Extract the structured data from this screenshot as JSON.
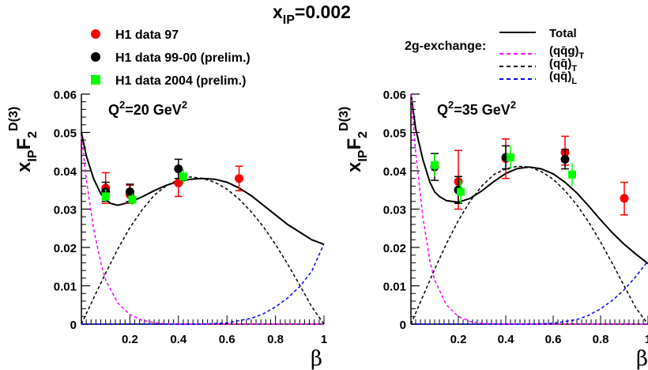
{
  "header": {
    "title_main": "x",
    "title_sub": "IP",
    "title_value": "=0.002",
    "legend_title": "2g-exchange:"
  },
  "legend": {
    "data": [
      {
        "label": "H1 data 97",
        "color": "#ff0000",
        "marker": "circle"
      },
      {
        "label": "H1 data 99-00 (prelim.)",
        "color": "#000000",
        "marker": "circle"
      },
      {
        "label": "H1 data 2004 (prelim.)",
        "color": "#00ff00",
        "marker": "square"
      }
    ],
    "curves": [
      {
        "main": "Total",
        "sub": "",
        "color": "#000000",
        "style": "solid"
      },
      {
        "main": "(qq̄g)",
        "sub": "T",
        "color": "#ff00ff",
        "style": "dashed"
      },
      {
        "main": "(qq̄)",
        "sub": "T",
        "color": "#000000",
        "style": "dashed"
      },
      {
        "main": "(qq̄)",
        "sub": "L",
        "color": "#0000ff",
        "style": "dashed"
      }
    ]
  },
  "chart_data": [
    {
      "type": "scatter",
      "q2_main": "Q",
      "q2_sup": "2",
      "q2_value": "=20 GeV",
      "q2_unit_sup": "2",
      "xlabel": "β",
      "ylabel": {
        "main": "x",
        "sub": "IP",
        "F": "F",
        "F_sub": "2",
        "F_sup": "D(3)"
      },
      "xlim": [
        0,
        1
      ],
      "ylim": [
        0,
        0.06
      ],
      "x_ticks": [
        "0.2",
        "0.4",
        "0.6",
        "0.8",
        "1"
      ],
      "y_ticks": [
        "0",
        "0.01",
        "0.02",
        "0.03",
        "0.04",
        "0.05",
        "0.06"
      ],
      "series": [
        {
          "name": "H1 data 97",
          "color": "#ff0000",
          "marker": "circle",
          "points": [
            {
              "x": 0.1,
              "y": 0.0355,
              "lo": 0.0315,
              "hi": 0.0395
            },
            {
              "x": 0.2,
              "y": 0.0338,
              "lo": 0.0315,
              "hi": 0.0362
            },
            {
              "x": 0.4,
              "y": 0.0368,
              "lo": 0.0333,
              "hi": 0.0403
            },
            {
              "x": 0.65,
              "y": 0.038,
              "lo": 0.0348,
              "hi": 0.0412
            }
          ]
        },
        {
          "name": "H1 data 99-00 (prelim.)",
          "color": "#000000",
          "marker": "circle",
          "points": [
            {
              "x": 0.1,
              "y": 0.0345,
              "lo": 0.032,
              "hi": 0.037
            },
            {
              "x": 0.2,
              "y": 0.0345,
              "lo": 0.032,
              "hi": 0.0365
            },
            {
              "x": 0.4,
              "y": 0.0405,
              "lo": 0.038,
              "hi": 0.043
            }
          ]
        },
        {
          "name": "H1 data 2004 (prelim.)",
          "color": "#00ff00",
          "marker": "square",
          "points": [
            {
              "x": 0.1,
              "y": 0.0333,
              "lo": 0.0315,
              "hi": 0.0352
            },
            {
              "x": 0.21,
              "y": 0.0325,
              "lo": 0.031,
              "hi": 0.034
            },
            {
              "x": 0.42,
              "y": 0.0385,
              "lo": 0.0365,
              "hi": 0.0405
            }
          ]
        }
      ],
      "curves": [
        {
          "name": "Total",
          "color": "#000000",
          "style": "solid",
          "x": [
            0,
            0.02,
            0.05,
            0.08,
            0.1,
            0.12,
            0.15,
            0.2,
            0.25,
            0.3,
            0.35,
            0.4,
            0.45,
            0.5,
            0.55,
            0.6,
            0.65,
            0.7,
            0.75,
            0.8,
            0.85,
            0.9,
            0.95,
            1.0
          ],
          "y": [
            0.05,
            0.044,
            0.038,
            0.034,
            0.0325,
            0.0315,
            0.031,
            0.0318,
            0.0332,
            0.0348,
            0.0362,
            0.0372,
            0.0378,
            0.038,
            0.0378,
            0.037,
            0.0355,
            0.0335,
            0.031,
            0.0285,
            0.026,
            0.024,
            0.022,
            0.0208
          ]
        },
        {
          "name": "(qq̄g)T",
          "color": "#ff00ff",
          "style": "dashed",
          "x": [
            0,
            0.02,
            0.05,
            0.08,
            0.1,
            0.15,
            0.2,
            0.25,
            0.3,
            0.35,
            0.4,
            0.5,
            0.6,
            1.0
          ],
          "y": [
            0.049,
            0.038,
            0.025,
            0.016,
            0.0115,
            0.0055,
            0.0025,
            0.001,
            0.0004,
            0.0001,
            0.0,
            0.0,
            0.0,
            0.0
          ]
        },
        {
          "name": "(qq̄)T",
          "color": "#000000",
          "style": "dashed",
          "x": [
            0,
            0.05,
            0.1,
            0.15,
            0.2,
            0.25,
            0.3,
            0.35,
            0.4,
            0.45,
            0.5,
            0.55,
            0.6,
            0.65,
            0.7,
            0.75,
            0.8,
            0.85,
            0.9,
            0.95,
            1.0
          ],
          "y": [
            0.0,
            0.0067,
            0.0133,
            0.0196,
            0.0252,
            0.0298,
            0.0336,
            0.0361,
            0.0377,
            0.0384,
            0.038,
            0.037,
            0.0352,
            0.0326,
            0.0293,
            0.0254,
            0.0208,
            0.0157,
            0.0102,
            0.0045,
            0.0
          ]
        },
        {
          "name": "(qq̄)L",
          "color": "#0000ff",
          "style": "dashed",
          "x": [
            0,
            0.5,
            0.6,
            0.7,
            0.75,
            0.8,
            0.85,
            0.9,
            0.95,
            1.0
          ],
          "y": [
            0.0,
            0.0,
            0.0003,
            0.0015,
            0.0027,
            0.0045,
            0.0068,
            0.0098,
            0.0138,
            0.021
          ]
        }
      ]
    },
    {
      "type": "scatter",
      "q2_main": "Q",
      "q2_sup": "2",
      "q2_value": "=35 GeV",
      "q2_unit_sup": "2",
      "xlabel": "β",
      "ylabel": {
        "main": "x",
        "sub": "IP",
        "F": "F",
        "F_sub": "2",
        "F_sup": "D(3)"
      },
      "xlim": [
        0,
        1
      ],
      "ylim": [
        0,
        0.06
      ],
      "x_ticks": [
        "0.2",
        "0.4",
        "0.6",
        "0.8",
        "1"
      ],
      "y_ticks": [
        "0",
        "0.01",
        "0.02",
        "0.03",
        "0.04",
        "0.05",
        "0.06"
      ],
      "series": [
        {
          "name": "H1 data 97",
          "color": "#ff0000",
          "marker": "circle",
          "points": [
            {
              "x": 0.2,
              "y": 0.0372,
              "lo": 0.03,
              "hi": 0.0453
            },
            {
              "x": 0.4,
              "y": 0.0432,
              "lo": 0.038,
              "hi": 0.0483
            },
            {
              "x": 0.65,
              "y": 0.0448,
              "lo": 0.0415,
              "hi": 0.049
            },
            {
              "x": 0.9,
              "y": 0.0328,
              "lo": 0.0285,
              "hi": 0.037
            }
          ]
        },
        {
          "name": "H1 data 99-00 (prelim.)",
          "color": "#000000",
          "marker": "circle",
          "points": [
            {
              "x": 0.1,
              "y": 0.041,
              "lo": 0.0375,
              "hi": 0.0445
            },
            {
              "x": 0.2,
              "y": 0.035,
              "lo": 0.0315,
              "hi": 0.0385
            },
            {
              "x": 0.4,
              "y": 0.0435,
              "lo": 0.0405,
              "hi": 0.0465
            },
            {
              "x": 0.65,
              "y": 0.043,
              "lo": 0.0405,
              "hi": 0.0455
            }
          ]
        },
        {
          "name": "H1 data 2004 (prelim.)",
          "color": "#00ff00",
          "marker": "square",
          "points": [
            {
              "x": 0.1,
              "y": 0.0415,
              "lo": 0.0385,
              "hi": 0.0445
            },
            {
              "x": 0.21,
              "y": 0.0345,
              "lo": 0.0315,
              "hi": 0.0375
            },
            {
              "x": 0.42,
              "y": 0.0435,
              "lo": 0.0405,
              "hi": 0.0465
            },
            {
              "x": 0.68,
              "y": 0.039,
              "lo": 0.036,
              "hi": 0.042
            }
          ]
        }
      ],
      "curves": [
        {
          "name": "Total",
          "color": "#000000",
          "style": "solid",
          "x": [
            0,
            0.02,
            0.05,
            0.08,
            0.1,
            0.12,
            0.15,
            0.2,
            0.25,
            0.3,
            0.35,
            0.4,
            0.45,
            0.5,
            0.55,
            0.6,
            0.65,
            0.7,
            0.75,
            0.8,
            0.85,
            0.9,
            0.95,
            1.0
          ],
          "y": [
            0.06,
            0.051,
            0.043,
            0.037,
            0.0345,
            0.0333,
            0.0322,
            0.0318,
            0.0328,
            0.0348,
            0.0372,
            0.0393,
            0.0406,
            0.041,
            0.0405,
            0.0392,
            0.037,
            0.0342,
            0.0308,
            0.0272,
            0.0238,
            0.0208,
            0.0182,
            0.0158
          ]
        },
        {
          "name": "(qq̄g)T",
          "color": "#ff00ff",
          "style": "dashed",
          "x": [
            0,
            0.02,
            0.05,
            0.08,
            0.1,
            0.15,
            0.2,
            0.25,
            0.3,
            0.35,
            0.4,
            0.5,
            1.0
          ],
          "y": [
            0.06,
            0.045,
            0.028,
            0.0165,
            0.0115,
            0.005,
            0.002,
            0.0007,
            0.0002,
            0.0001,
            0.0,
            0.0,
            0.0
          ]
        },
        {
          "name": "(qq̄)T",
          "color": "#000000",
          "style": "dashed",
          "x": [
            0,
            0.05,
            0.1,
            0.15,
            0.2,
            0.25,
            0.3,
            0.35,
            0.4,
            0.45,
            0.5,
            0.55,
            0.6,
            0.65,
            0.7,
            0.75,
            0.8,
            0.85,
            0.9,
            0.95,
            1.0
          ],
          "y": [
            0.0,
            0.0072,
            0.0143,
            0.021,
            0.027,
            0.0321,
            0.0361,
            0.039,
            0.0405,
            0.0412,
            0.041,
            0.0398,
            0.0378,
            0.0348,
            0.0311,
            0.0266,
            0.0214,
            0.0158,
            0.0099,
            0.0041,
            0.0
          ]
        },
        {
          "name": "(qq̄)L",
          "color": "#0000ff",
          "style": "dashed",
          "x": [
            0,
            0.5,
            0.6,
            0.7,
            0.75,
            0.8,
            0.85,
            0.9,
            0.95,
            1.0
          ],
          "y": [
            0.0,
            0.0,
            0.0002,
            0.0012,
            0.0023,
            0.004,
            0.0062,
            0.009,
            0.0125,
            0.0165
          ]
        }
      ]
    }
  ]
}
